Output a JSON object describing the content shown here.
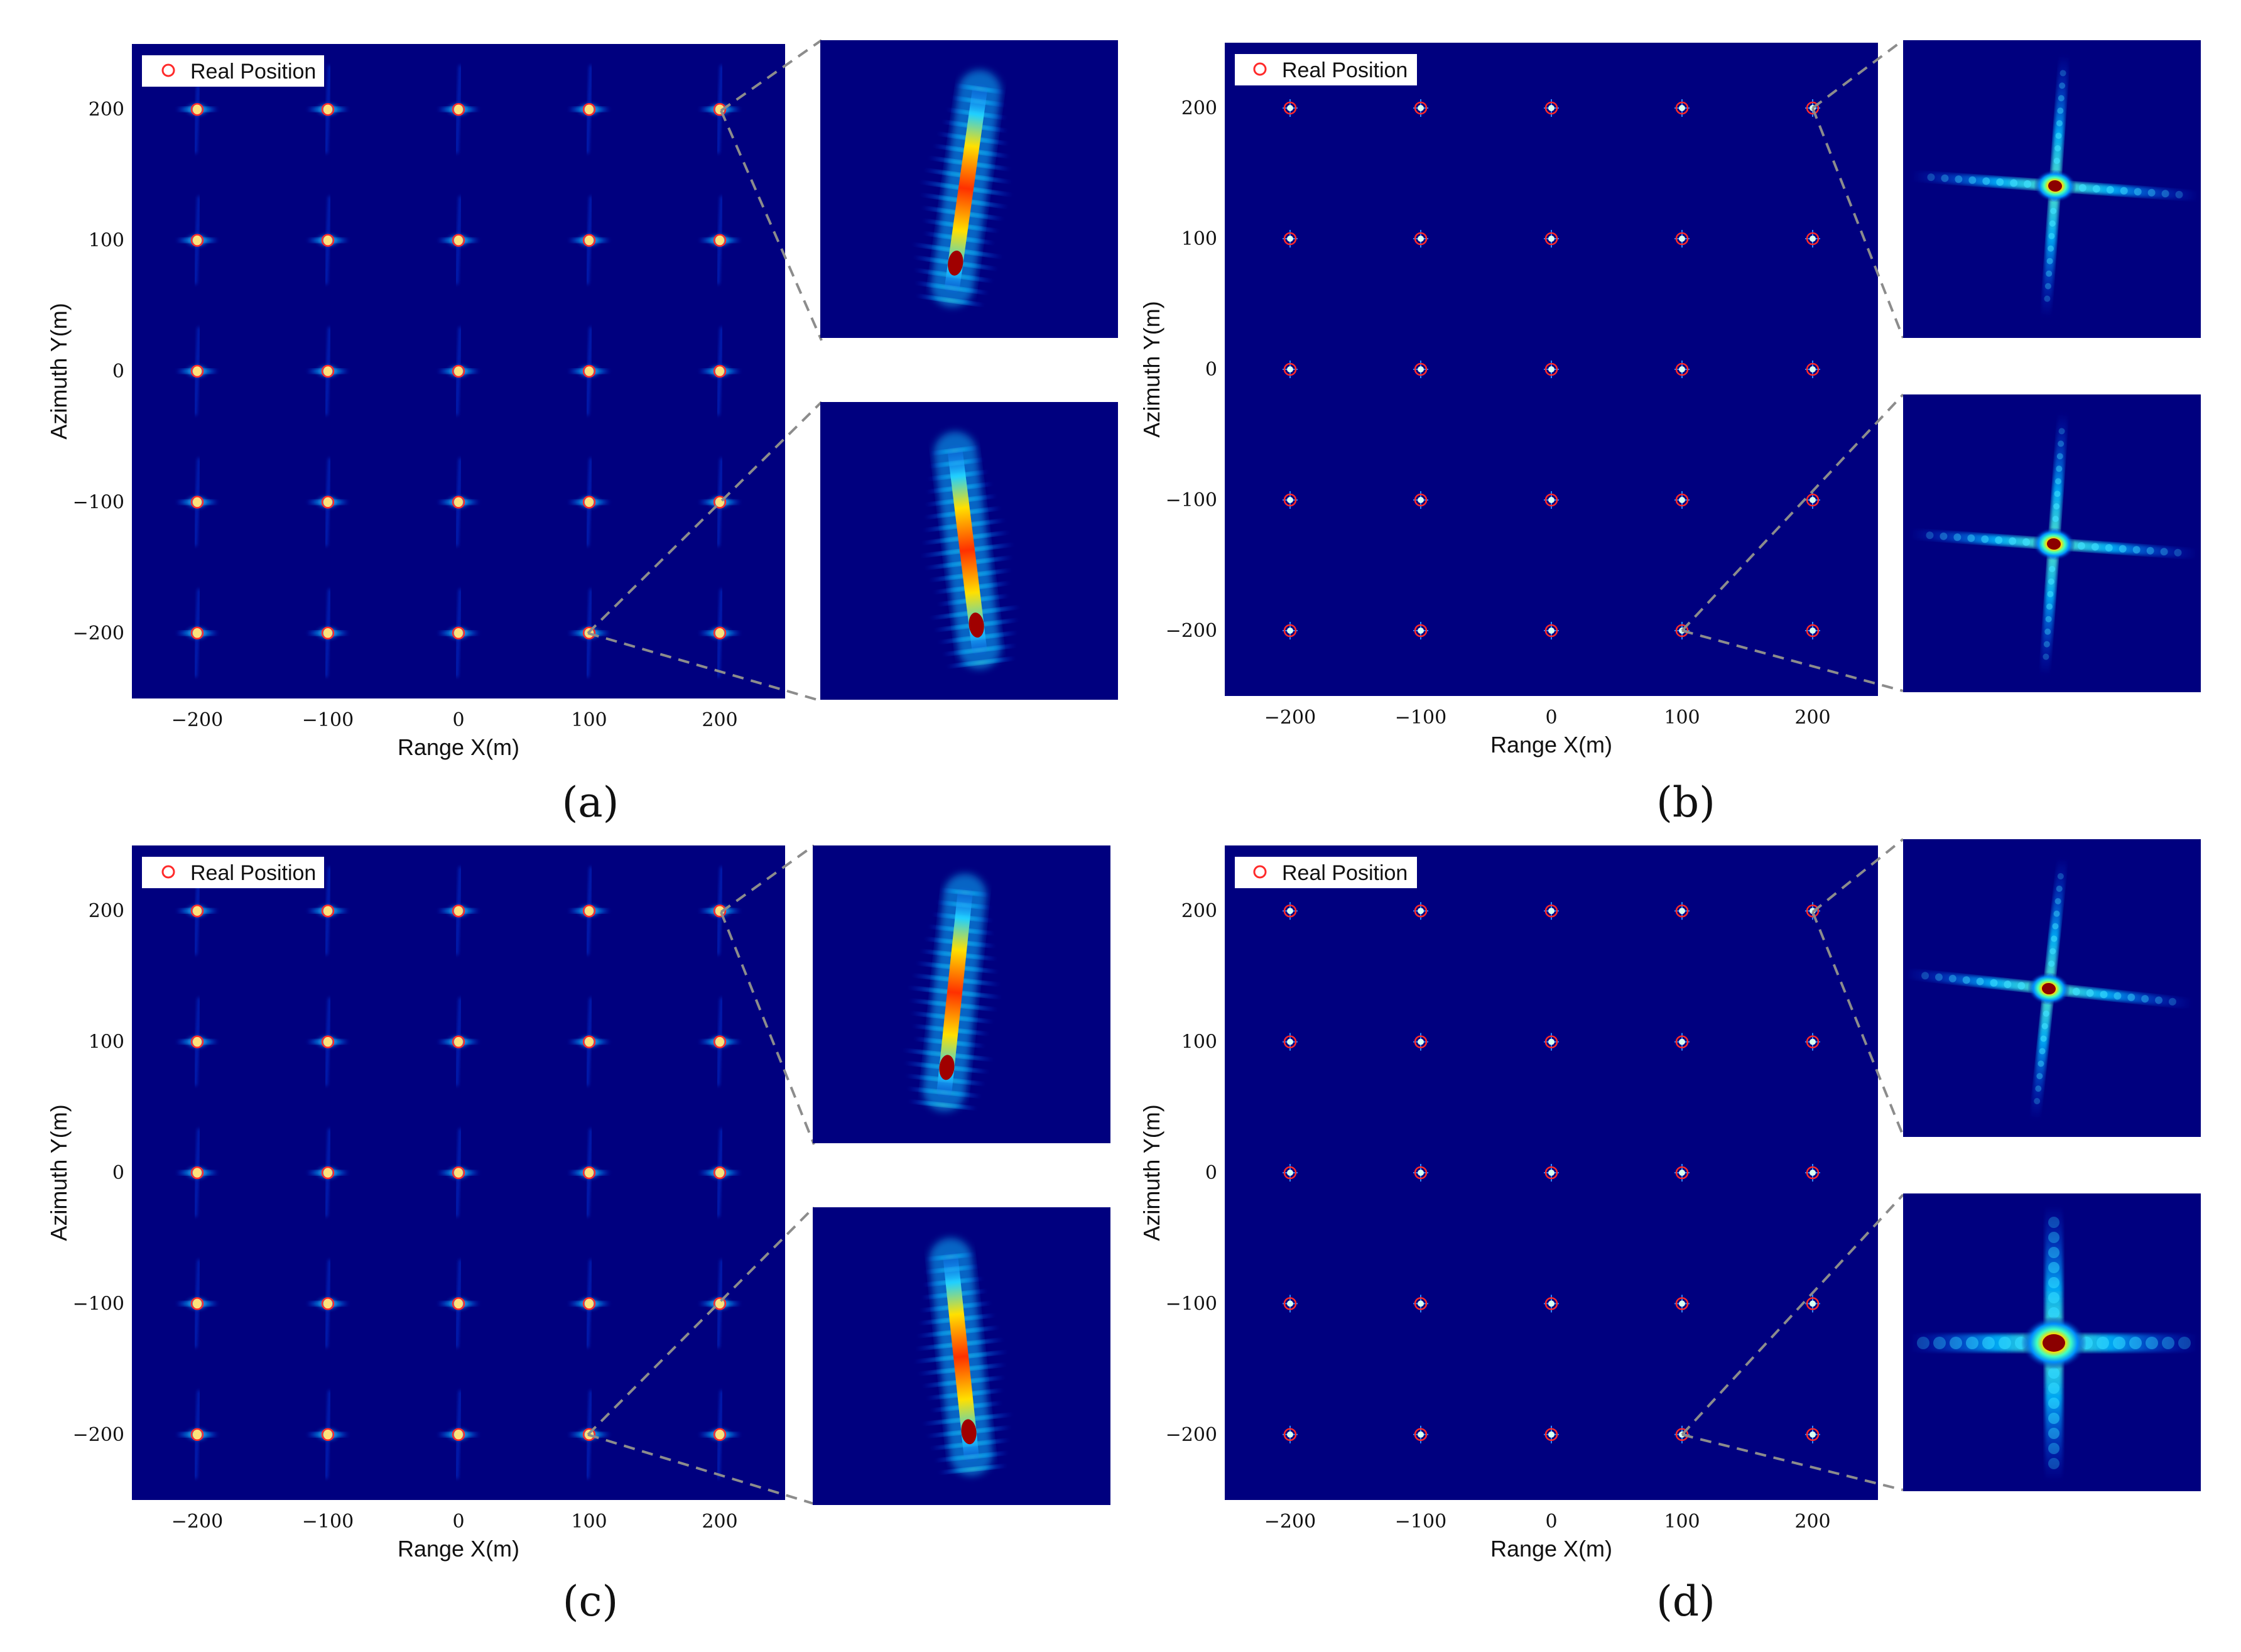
{
  "colors": {
    "background": "#00007f",
    "marker": "#ff2a2a",
    "leader_line": "#8c8c8c"
  },
  "chart_data": [
    {
      "type": "scatter",
      "panel": "a",
      "caption": "(a)",
      "xlabel": "Range X(m)",
      "ylabel": "Azimuth Y(m)",
      "xlim": [
        -250,
        250
      ],
      "ylim": [
        -250,
        250
      ],
      "xticks": [
        "−200",
        "−100",
        "0",
        "100",
        "200"
      ],
      "yticks": [
        "200",
        "100",
        "0",
        "−100",
        "−200"
      ],
      "legend": "Real Position",
      "legend_location": "top-left",
      "grid": false,
      "colormap": "jet",
      "focus": "defocused",
      "x": [
        -200,
        -100,
        0,
        100,
        200
      ],
      "y": [
        200,
        100,
        0,
        -100,
        -200
      ],
      "zoom_targets": [
        [
          200,
          200
        ],
        [
          100,
          -200
        ]
      ]
    },
    {
      "type": "scatter",
      "panel": "b",
      "caption": "(b)",
      "xlabel": "Range X(m)",
      "ylabel": "Azimuth Y(m)",
      "xlim": [
        -250,
        250
      ],
      "ylim": [
        -250,
        250
      ],
      "xticks": [
        "−200",
        "−100",
        "0",
        "100",
        "200"
      ],
      "yticks": [
        "200",
        "100",
        "0",
        "−100",
        "−200"
      ],
      "legend": "Real Position",
      "legend_location": "top-left",
      "grid": false,
      "colormap": "jet",
      "focus": "focused",
      "x": [
        -200,
        -100,
        0,
        100,
        200
      ],
      "y": [
        200,
        100,
        0,
        -100,
        -200
      ],
      "zoom_targets": [
        [
          200,
          200
        ],
        [
          100,
          -200
        ]
      ]
    },
    {
      "type": "scatter",
      "panel": "c",
      "caption": "(c)",
      "xlabel": "Range X(m)",
      "ylabel": "Azimuth Y(m)",
      "xlim": [
        -250,
        250
      ],
      "ylim": [
        -250,
        250
      ],
      "xticks": [
        "−200",
        "−100",
        "0",
        "100",
        "200"
      ],
      "yticks": [
        "200",
        "100",
        "0",
        "−100",
        "−200"
      ],
      "legend": "Real Position",
      "legend_location": "top-left",
      "grid": false,
      "colormap": "jet",
      "focus": "defocused",
      "x": [
        -200,
        -100,
        0,
        100,
        200
      ],
      "y": [
        200,
        100,
        0,
        -100,
        -200
      ],
      "zoom_targets": [
        [
          200,
          200
        ],
        [
          100,
          -200
        ]
      ]
    },
    {
      "type": "scatter",
      "panel": "d",
      "caption": "(d)",
      "xlabel": "Range X(m)",
      "ylabel": "Azimuth Y(m)",
      "xlim": [
        -250,
        250
      ],
      "ylim": [
        -250,
        250
      ],
      "xticks": [
        "−200",
        "−100",
        "0",
        "100",
        "200"
      ],
      "yticks": [
        "200",
        "100",
        "0",
        "−100",
        "−200"
      ],
      "legend": "Real Position",
      "legend_location": "top-left",
      "grid": false,
      "colormap": "jet",
      "focus": "focused",
      "x": [
        -200,
        -100,
        0,
        100,
        200
      ],
      "y": [
        200,
        100,
        0,
        -100,
        -200
      ],
      "zoom_targets": [
        [
          200,
          200
        ],
        [
          100,
          -200
        ]
      ]
    }
  ]
}
